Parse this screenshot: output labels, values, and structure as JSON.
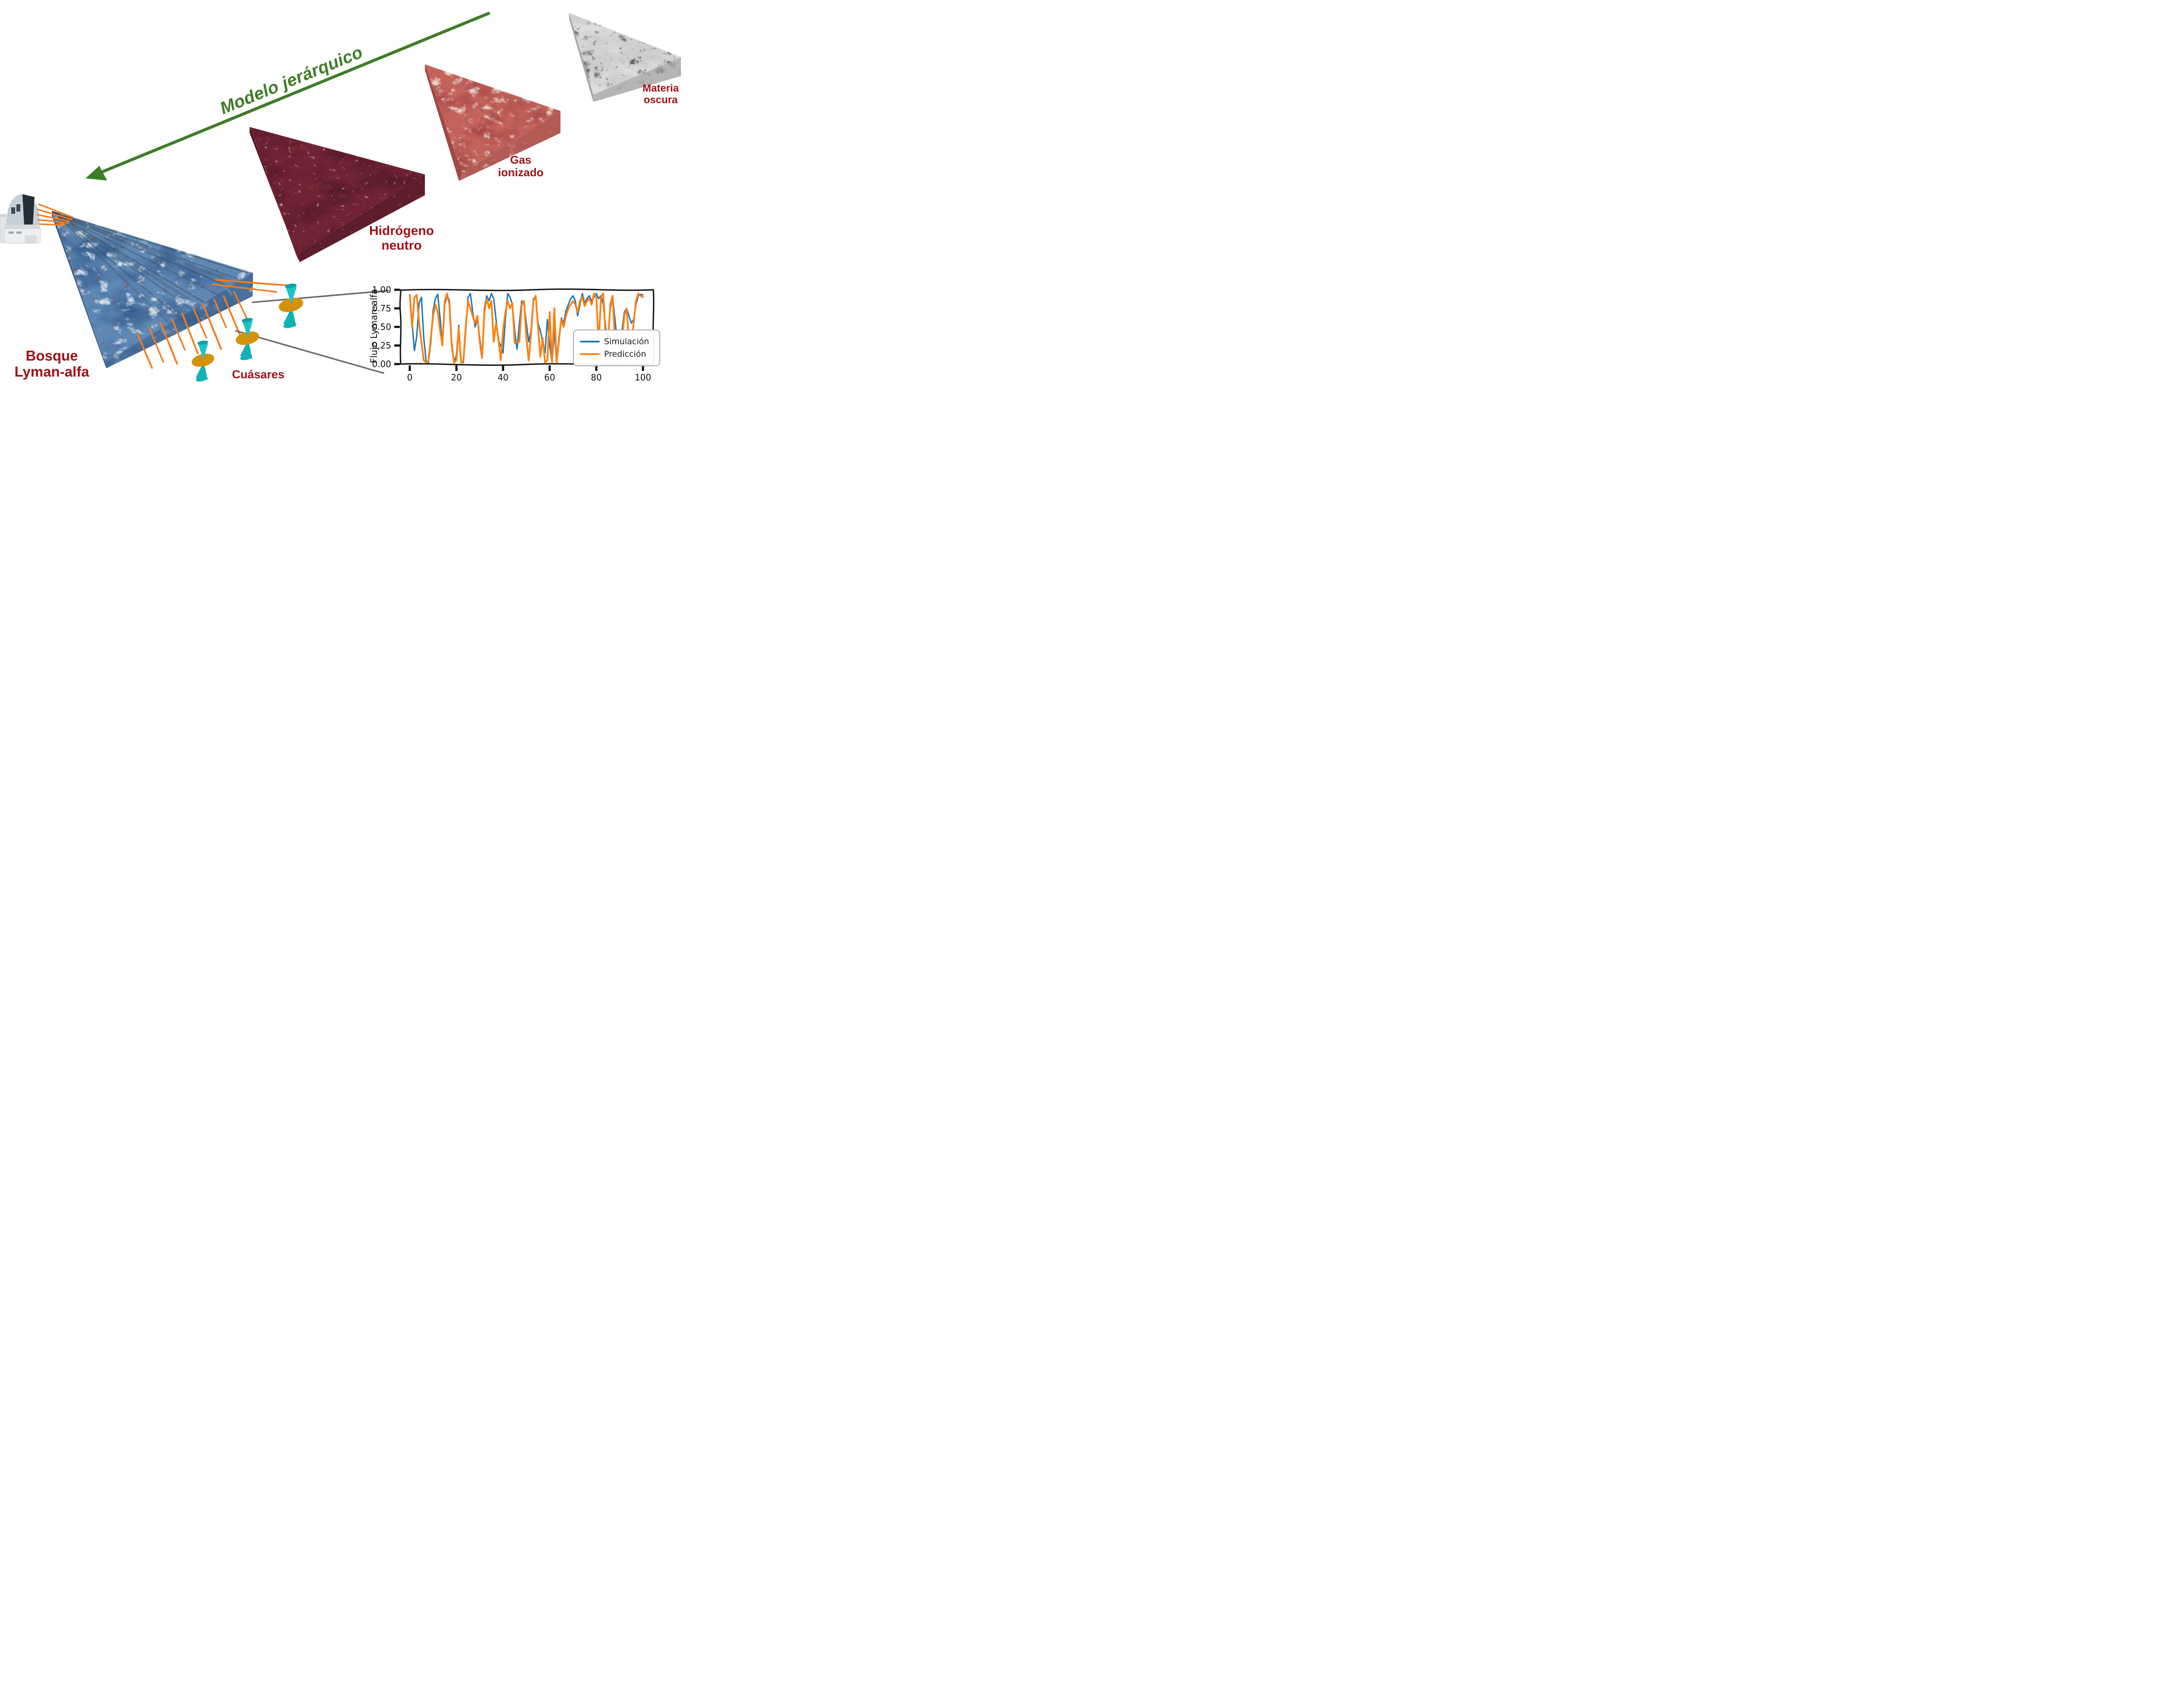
{
  "hierarchy_arrow": {
    "label": "Modelo jerárquico"
  },
  "slabs": [
    {
      "id": "dark-matter",
      "label_line1": "Materia",
      "label_line2": "oscura"
    },
    {
      "id": "ionized-gas",
      "label_line1": "Gas",
      "label_line2": "ionizado"
    },
    {
      "id": "neutral-hydrogen",
      "label_line1": "Hidrógeno",
      "label_line2": "neutro"
    },
    {
      "id": "lyman-alpha-forest",
      "label_line1": "Bosque",
      "label_line2": "Lyman-alfa"
    }
  ],
  "quasars_label": "Cuásares",
  "colors": {
    "label_red": "#9e1116",
    "arrow_green": "#3e7d28",
    "sightline_orange": "#f47a20",
    "connector_gray": "#6a6a6a",
    "simulation_blue": "#1f77b4",
    "prediction_orange": "#ff7f0e",
    "quasar_disk": "#d4920a",
    "quasar_jet": "#1ec4c4"
  },
  "chart_data": {
    "type": "line",
    "title": "",
    "xlabel": "",
    "ylabel": "Flujo Lyman-alfa",
    "xlim": [
      -4,
      104
    ],
    "ylim": [
      0,
      1
    ],
    "xticks": [
      0,
      20,
      40,
      60,
      80,
      100
    ],
    "yticks": [
      1.0,
      0.75,
      0.5,
      0.25,
      0.0
    ],
    "grid": false,
    "style": "hand-drawn (xkcd-like) axes",
    "legend": {
      "position": "lower right",
      "entries": [
        {
          "label": "Simulación",
          "color": "#1f77b4"
        },
        {
          "label": "Predicción",
          "color": "#ff7f0e"
        }
      ]
    },
    "x_start": 0,
    "x_step": 1,
    "series": [
      {
        "name": "Simulación",
        "color": "#1f77b4",
        "values": [
          0.92,
          0.55,
          0.18,
          0.38,
          0.82,
          0.9,
          0.35,
          0.04,
          0.02,
          0.28,
          0.72,
          0.88,
          0.94,
          0.62,
          0.28,
          0.8,
          0.92,
          0.86,
          0.3,
          0.02,
          0.12,
          0.52,
          0.04,
          0.02,
          0.45,
          0.9,
          0.95,
          0.7,
          0.5,
          0.6,
          0.35,
          0.12,
          0.75,
          0.92,
          0.85,
          0.95,
          0.88,
          0.6,
          0.32,
          0.25,
          0.15,
          0.6,
          0.95,
          0.9,
          0.8,
          0.45,
          0.2,
          0.55,
          0.85,
          0.8,
          0.55,
          0.3,
          0.45,
          0.88,
          0.9,
          0.55,
          0.45,
          0.3,
          0.15,
          0.6,
          0.25,
          0.02,
          0.45,
          0.02,
          0.3,
          0.62,
          0.55,
          0.72,
          0.8,
          0.88,
          0.92,
          0.85,
          0.65,
          0.8,
          0.95,
          0.82,
          0.88,
          0.92,
          0.85,
          0.9,
          0.95,
          0.88,
          0.92,
          0.8,
          0.5,
          0.35,
          0.75,
          0.9,
          0.6,
          0.3,
          0.2,
          0.45,
          0.7,
          0.75,
          0.65,
          0.55,
          0.6,
          0.8,
          0.92,
          0.94,
          0.93
        ]
      },
      {
        "name": "Predicción",
        "color": "#ff7f0e",
        "values": [
          0.93,
          0.5,
          0.9,
          0.93,
          0.55,
          0.3,
          0.05,
          0.02,
          0.04,
          0.35,
          0.65,
          0.8,
          0.7,
          0.45,
          0.25,
          0.85,
          0.95,
          0.8,
          0.25,
          0.02,
          0.05,
          0.48,
          0.02,
          0.04,
          0.5,
          0.85,
          0.75,
          0.65,
          0.55,
          0.65,
          0.3,
          0.08,
          0.7,
          0.88,
          0.75,
          0.85,
          0.3,
          0.55,
          0.35,
          0.05,
          0.45,
          0.7,
          0.85,
          0.75,
          0.82,
          0.28,
          0.3,
          0.3,
          0.8,
          0.85,
          0.35,
          0.05,
          0.4,
          0.85,
          0.92,
          0.5,
          0.1,
          0.35,
          0.02,
          0.05,
          0.7,
          0.02,
          0.75,
          0.02,
          0.35,
          0.6,
          0.5,
          0.65,
          0.75,
          0.8,
          0.85,
          0.8,
          0.7,
          0.85,
          0.9,
          0.78,
          0.85,
          0.88,
          0.8,
          0.95,
          0.9,
          0.25,
          0.9,
          0.95,
          0.35,
          0.28,
          0.8,
          0.92,
          0.3,
          0.25,
          0.32,
          0.3,
          0.65,
          0.75,
          0.3,
          0.25,
          0.55,
          0.85,
          0.95,
          0.92,
          0.9
        ]
      }
    ]
  }
}
